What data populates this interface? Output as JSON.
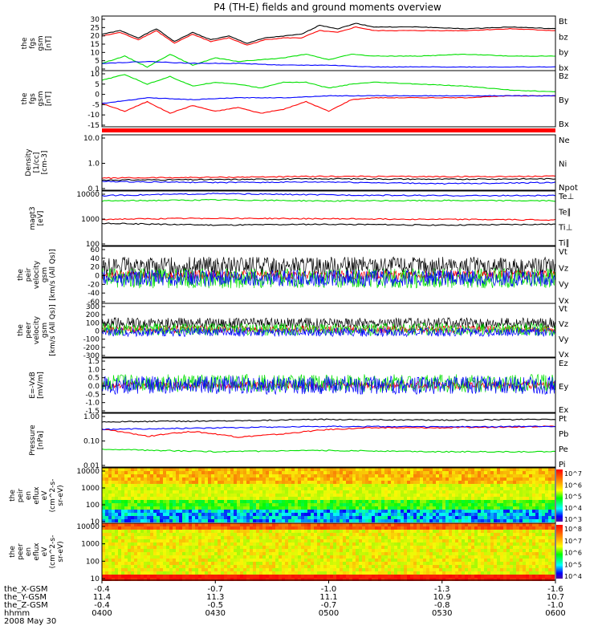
{
  "title": "P4 (TH-E) fields and ground moments overview",
  "date_label": "2008 May 30",
  "colors": {
    "black": "#000000",
    "red": "#ff0000",
    "green": "#00e000",
    "blue": "#0000ff"
  },
  "chart_data": [
    {
      "type": "line",
      "ylabel": [
        "the",
        "fgs",
        "gsm",
        "[nT]"
      ],
      "scale": "linear",
      "ylim": [
        0,
        30
      ],
      "yticks": [
        "30",
        "25",
        "20",
        "15",
        "10",
        "5",
        "0"
      ],
      "series": [
        {
          "name": "Bt",
          "color": "black",
          "x": [
            0,
            0.04,
            0.08,
            0.12,
            0.16,
            0.2,
            0.24,
            0.28,
            0.32,
            0.36,
            0.4,
            0.44,
            0.48,
            0.52,
            0.56,
            0.6,
            0.7,
            0.8,
            0.9,
            1.0
          ],
          "y": [
            20,
            22,
            18,
            23,
            16,
            21,
            17,
            19,
            15,
            18,
            19,
            20,
            25,
            23,
            26,
            24,
            24,
            23,
            24,
            23
          ]
        },
        {
          "name": "bz",
          "color": "red",
          "x": [
            0,
            0.04,
            0.08,
            0.12,
            0.16,
            0.2,
            0.24,
            0.28,
            0.32,
            0.36,
            0.4,
            0.44,
            0.48,
            0.52,
            0.56,
            0.6,
            0.7,
            0.8,
            0.9,
            1.0
          ],
          "y": [
            19,
            21,
            17,
            22,
            15,
            20,
            16,
            18,
            14,
            17,
            18,
            18,
            22,
            21,
            24,
            22,
            22,
            22,
            23,
            22
          ]
        },
        {
          "name": "by",
          "color": "green",
          "x": [
            0,
            0.05,
            0.1,
            0.15,
            0.2,
            0.25,
            0.3,
            0.35,
            0.4,
            0.45,
            0.5,
            0.55,
            0.6,
            0.7,
            0.8,
            0.9,
            1.0
          ],
          "y": [
            4,
            8,
            2,
            9,
            3,
            7,
            5,
            6,
            7,
            9,
            6,
            9,
            8,
            8,
            9,
            8,
            8
          ]
        },
        {
          "name": "bx",
          "color": "blue",
          "x": [
            0,
            0.1,
            0.2,
            0.3,
            0.4,
            0.5,
            0.6,
            0.7,
            0.8,
            0.9,
            1.0
          ],
          "y": [
            4,
            5,
            4,
            4,
            3,
            3,
            2,
            2,
            2,
            2,
            2
          ]
        }
      ]
    },
    {
      "type": "line",
      "ylabel": [
        "the",
        "fgs",
        "gsm",
        "[nT]"
      ],
      "scale": "linear",
      "ylim": [
        -17,
        12
      ],
      "yticks": [
        "10",
        "5",
        "0",
        "-5",
        "-10",
        "-15"
      ],
      "series": [
        {
          "name": "Bz",
          "color": "red",
          "x": [
            0,
            0.05,
            0.1,
            0.15,
            0.2,
            0.25,
            0.3,
            0.35,
            0.4,
            0.45,
            0.5,
            0.55,
            0.6,
            0.7,
            0.8,
            0.9,
            1.0
          ],
          "y": [
            -5,
            -9,
            -4,
            -10,
            -6,
            -9,
            -7,
            -10,
            -8,
            -4,
            -9,
            -3,
            -2,
            -2,
            -2,
            -1,
            -1
          ]
        },
        {
          "name": "By",
          "color": "green",
          "x": [
            0,
            0.05,
            0.1,
            0.15,
            0.2,
            0.25,
            0.3,
            0.35,
            0.4,
            0.45,
            0.5,
            0.55,
            0.6,
            0.7,
            0.8,
            0.9,
            1.0
          ],
          "y": [
            7,
            10,
            5,
            9,
            4,
            6,
            5,
            3,
            6,
            6,
            3,
            5,
            6,
            5,
            4,
            2,
            1
          ]
        },
        {
          "name": "Bx",
          "color": "blue",
          "x": [
            0,
            0.1,
            0.2,
            0.3,
            0.4,
            0.5,
            0.6,
            0.7,
            0.8,
            0.9,
            1.0
          ],
          "y": [
            -5,
            -2,
            -3,
            -2,
            -2,
            -1,
            -1,
            -1,
            -1,
            -1,
            -1
          ]
        }
      ]
    },
    {
      "type": "line",
      "ylabel": [
        "Density",
        "[1/cc]",
        "[cm-3]"
      ],
      "scale": "log",
      "ylim": [
        0.1,
        15
      ],
      "yticks": [
        "10.0",
        "1.0",
        "0.1"
      ],
      "series": [
        {
          "name": "Ne",
          "color": "red",
          "x": [
            0,
            0.25,
            0.5,
            0.75,
            1.0
          ],
          "y": [
            0.3,
            0.32,
            0.35,
            0.34,
            0.35
          ]
        },
        {
          "name": "Ni",
          "color": "black",
          "x": [
            0,
            0.25,
            0.5,
            0.75,
            1.0
          ],
          "y": [
            0.25,
            0.26,
            0.28,
            0.27,
            0.28
          ]
        },
        {
          "name": "Npot",
          "color": "blue",
          "x": [
            0,
            0.25,
            0.5,
            0.75,
            1.0
          ],
          "y": [
            0.22,
            0.2,
            0.21,
            0.18,
            0.2
          ]
        }
      ]
    },
    {
      "type": "line",
      "ylabel": [
        "magt3",
        "[eV]"
      ],
      "scale": "log",
      "ylim": [
        100,
        12000
      ],
      "yticks": [
        "10000",
        "1000",
        "100"
      ],
      "series": [
        {
          "name": "Te⊥",
          "color": "red",
          "x": [
            0,
            0.25,
            0.5,
            0.75,
            1.0
          ],
          "y": [
            1000,
            1100,
            1050,
            1000,
            950
          ]
        },
        {
          "name": "Te∥",
          "color": "black",
          "x": [
            0,
            0.25,
            0.5,
            0.75,
            1.0
          ],
          "y": [
            700,
            600,
            650,
            600,
            650
          ]
        },
        {
          "name": "Ti⊥",
          "color": "blue",
          "x": [
            0,
            0.25,
            0.5,
            0.75,
            1.0
          ],
          "y": [
            8000,
            9500,
            8500,
            8000,
            8000
          ]
        },
        {
          "name": "Ti∥",
          "color": "green",
          "x": [
            0,
            0.25,
            0.5,
            0.75,
            1.0
          ],
          "y": [
            5000,
            5500,
            5000,
            5200,
            5100
          ]
        }
      ]
    },
    {
      "type": "line",
      "ylabel": [
        "the",
        "peir",
        "velocity",
        "gsm",
        "[km/s (All Qs)]"
      ],
      "scale": "linear",
      "ylim": [
        -60,
        65
      ],
      "yticks": [
        "60",
        "40",
        "20",
        "0",
        "-20",
        "-40",
        "-60"
      ],
      "series": [
        {
          "name": "Vt",
          "color": "black",
          "level": 22,
          "amp": 20
        },
        {
          "name": "Vz",
          "color": "red",
          "level": 2,
          "amp": 10
        },
        {
          "name": "Vy",
          "color": "green",
          "level": -5,
          "amp": 22
        },
        {
          "name": "Vx",
          "color": "blue",
          "level": -5,
          "amp": 18
        }
      ]
    },
    {
      "type": "line",
      "ylabel": [
        "the",
        "peer",
        "velocity",
        "gsm",
        "[km/s (All Qs)]"
      ],
      "scale": "linear",
      "ylim": [
        -300,
        300
      ],
      "yticks": [
        "300",
        "200",
        "100",
        "0",
        "-100",
        "-200",
        "-300"
      ],
      "series": [
        {
          "name": "Vt",
          "color": "black",
          "level": 80,
          "amp": 60
        },
        {
          "name": "Vz",
          "color": "red",
          "level": 10,
          "amp": 40
        },
        {
          "name": "Vy",
          "color": "green",
          "level": 10,
          "amp": 70
        },
        {
          "name": "Vx",
          "color": "blue",
          "level": -20,
          "amp": 50
        }
      ]
    },
    {
      "type": "line",
      "ylabel": [
        "E=-VxB",
        "[mV/m]"
      ],
      "scale": "linear",
      "ylim": [
        -1.5,
        1.5
      ],
      "yticks": [
        "1.5",
        "1.0",
        "0.5",
        "0.0",
        "-0.5",
        "-1.0",
        "-1.5"
      ],
      "series": [
        {
          "name": "Ez",
          "color": "red",
          "level": 0.0,
          "amp": 0.2
        },
        {
          "name": "Ey",
          "color": "green",
          "level": 0.1,
          "amp": 0.5
        },
        {
          "name": "Ex",
          "color": "blue",
          "level": 0.0,
          "amp": 0.5
        }
      ]
    },
    {
      "type": "line",
      "ylabel": [
        "Pressure",
        "[nPa]"
      ],
      "scale": "log",
      "ylim": [
        0.01,
        1.3
      ],
      "yticks": [
        "1.00",
        "0.10",
        "0.01"
      ],
      "series": [
        {
          "name": "Pt",
          "color": "black",
          "x": [
            0,
            0.25,
            0.5,
            0.75,
            1.0
          ],
          "y": [
            0.6,
            0.65,
            0.75,
            0.7,
            0.75
          ]
        },
        {
          "name": "Pb",
          "color": "red",
          "x": [
            0,
            0.1,
            0.2,
            0.3,
            0.4,
            0.5,
            0.6,
            0.75,
            1.0
          ],
          "y": [
            0.3,
            0.16,
            0.25,
            0.15,
            0.2,
            0.3,
            0.35,
            0.35,
            0.4
          ]
        },
        {
          "name": "Pe",
          "color": "green",
          "x": [
            0,
            0.25,
            0.5,
            0.75,
            1.0
          ],
          "y": [
            0.05,
            0.04,
            0.045,
            0.04,
            0.04
          ]
        },
        {
          "name": "Pi",
          "color": "blue",
          "x": [
            0,
            0.25,
            0.5,
            0.75,
            1.0
          ],
          "y": [
            0.3,
            0.35,
            0.4,
            0.38,
            0.4
          ]
        }
      ]
    },
    {
      "type": "heatmap",
      "ylabel": [
        "the",
        "peir",
        "en",
        "eflux",
        "eV",
        "(cm^2-s-",
        "sr-eV)"
      ],
      "scale": "log",
      "ylim": [
        7,
        30000
      ],
      "yticks": [
        "10000",
        "1000",
        "100",
        "10"
      ],
      "colorbar_ticks": [
        "10^7",
        "10^6",
        "10^5",
        "10^4",
        "10^3"
      ]
    },
    {
      "type": "heatmap",
      "ylabel": [
        "the",
        "peer",
        "en",
        "eflux",
        "eV",
        "(cm^2-s-",
        "sr-eV)"
      ],
      "scale": "log",
      "ylim": [
        7,
        30000
      ],
      "yticks": [
        "10000",
        "1000",
        "100",
        "10"
      ],
      "colorbar_ticks": [
        "10^8",
        "10^7",
        "10^6",
        "10^5",
        "10^4"
      ]
    }
  ],
  "ephemeris": {
    "rows": [
      {
        "label": "the_X-GSM",
        "values": [
          "-0.4",
          "-0.7",
          "-1.0",
          "-1.3",
          "-1.6"
        ]
      },
      {
        "label": "the_Y-GSM",
        "values": [
          "11.4",
          "11.3",
          "11.1",
          "10.9",
          "10.7"
        ]
      },
      {
        "label": "the_Z-GSM",
        "values": [
          "-0.4",
          "-0.5",
          "-0.7",
          "-0.8",
          "-1.0"
        ]
      },
      {
        "label": "hhmm",
        "values": [
          "0400",
          "0430",
          "0500",
          "0530",
          "0600"
        ]
      }
    ]
  }
}
